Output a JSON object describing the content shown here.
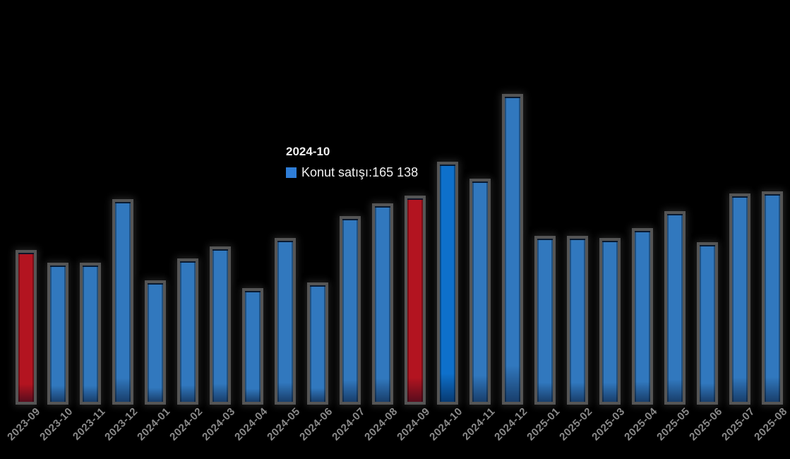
{
  "chart_data": {
    "type": "bar",
    "title": "",
    "xlabel": "",
    "ylabel": "",
    "categories": [
      "2023-09",
      "2023-10",
      "2023-11",
      "2023-12",
      "2024-01",
      "2024-02",
      "2024-03",
      "2024-04",
      "2024-05",
      "2024-06",
      "2024-07",
      "2024-08",
      "2024-09",
      "2024-10",
      "2024-11",
      "2024-12",
      "2025-01",
      "2025-02",
      "2025-03",
      "2025-04",
      "2025-05",
      "2025-06",
      "2025-07",
      "2025-08"
    ],
    "series": [
      {
        "name": "Konut satışı",
        "values": [
          103300,
          94400,
          94400,
          138900,
          82100,
          97400,
          105800,
          76600,
          111700,
          80600,
          127100,
          136000,
          141400,
          165138,
          153300,
          212600,
          113200,
          113200,
          111700,
          118700,
          130500,
          108800,
          142900,
          144400
        ]
      }
    ],
    "values_note": "only 2024-10 value (165 138) shown on screen via tooltip; other values estimated from bar heights",
    "point_styles": [
      "red",
      "default",
      "default",
      "default",
      "default",
      "default",
      "default",
      "default",
      "default",
      "default",
      "default",
      "default",
      "red",
      "hover",
      "default",
      "default",
      "default",
      "default",
      "default",
      "default",
      "default",
      "default",
      "default",
      "default"
    ],
    "ylim": [
      0,
      215000
    ],
    "grid": false,
    "legend_position": "none",
    "background": "transparent-on-black",
    "x_labels_rotation": -45
  },
  "tooltip": {
    "title": "2024-10",
    "series_label": "Konut satışı",
    "separator": ": ",
    "value": "165 138"
  },
  "colors": {
    "bar_default": "#3178be",
    "bar_hover": "#0e70cb",
    "bar_red": "#b31420",
    "tooltip_marker": "#2f7ed8",
    "axis_label": "#8a8a8a",
    "tooltip_text": "#f1f1f1",
    "background": "#000000",
    "bar_shadow": "#606060"
  }
}
